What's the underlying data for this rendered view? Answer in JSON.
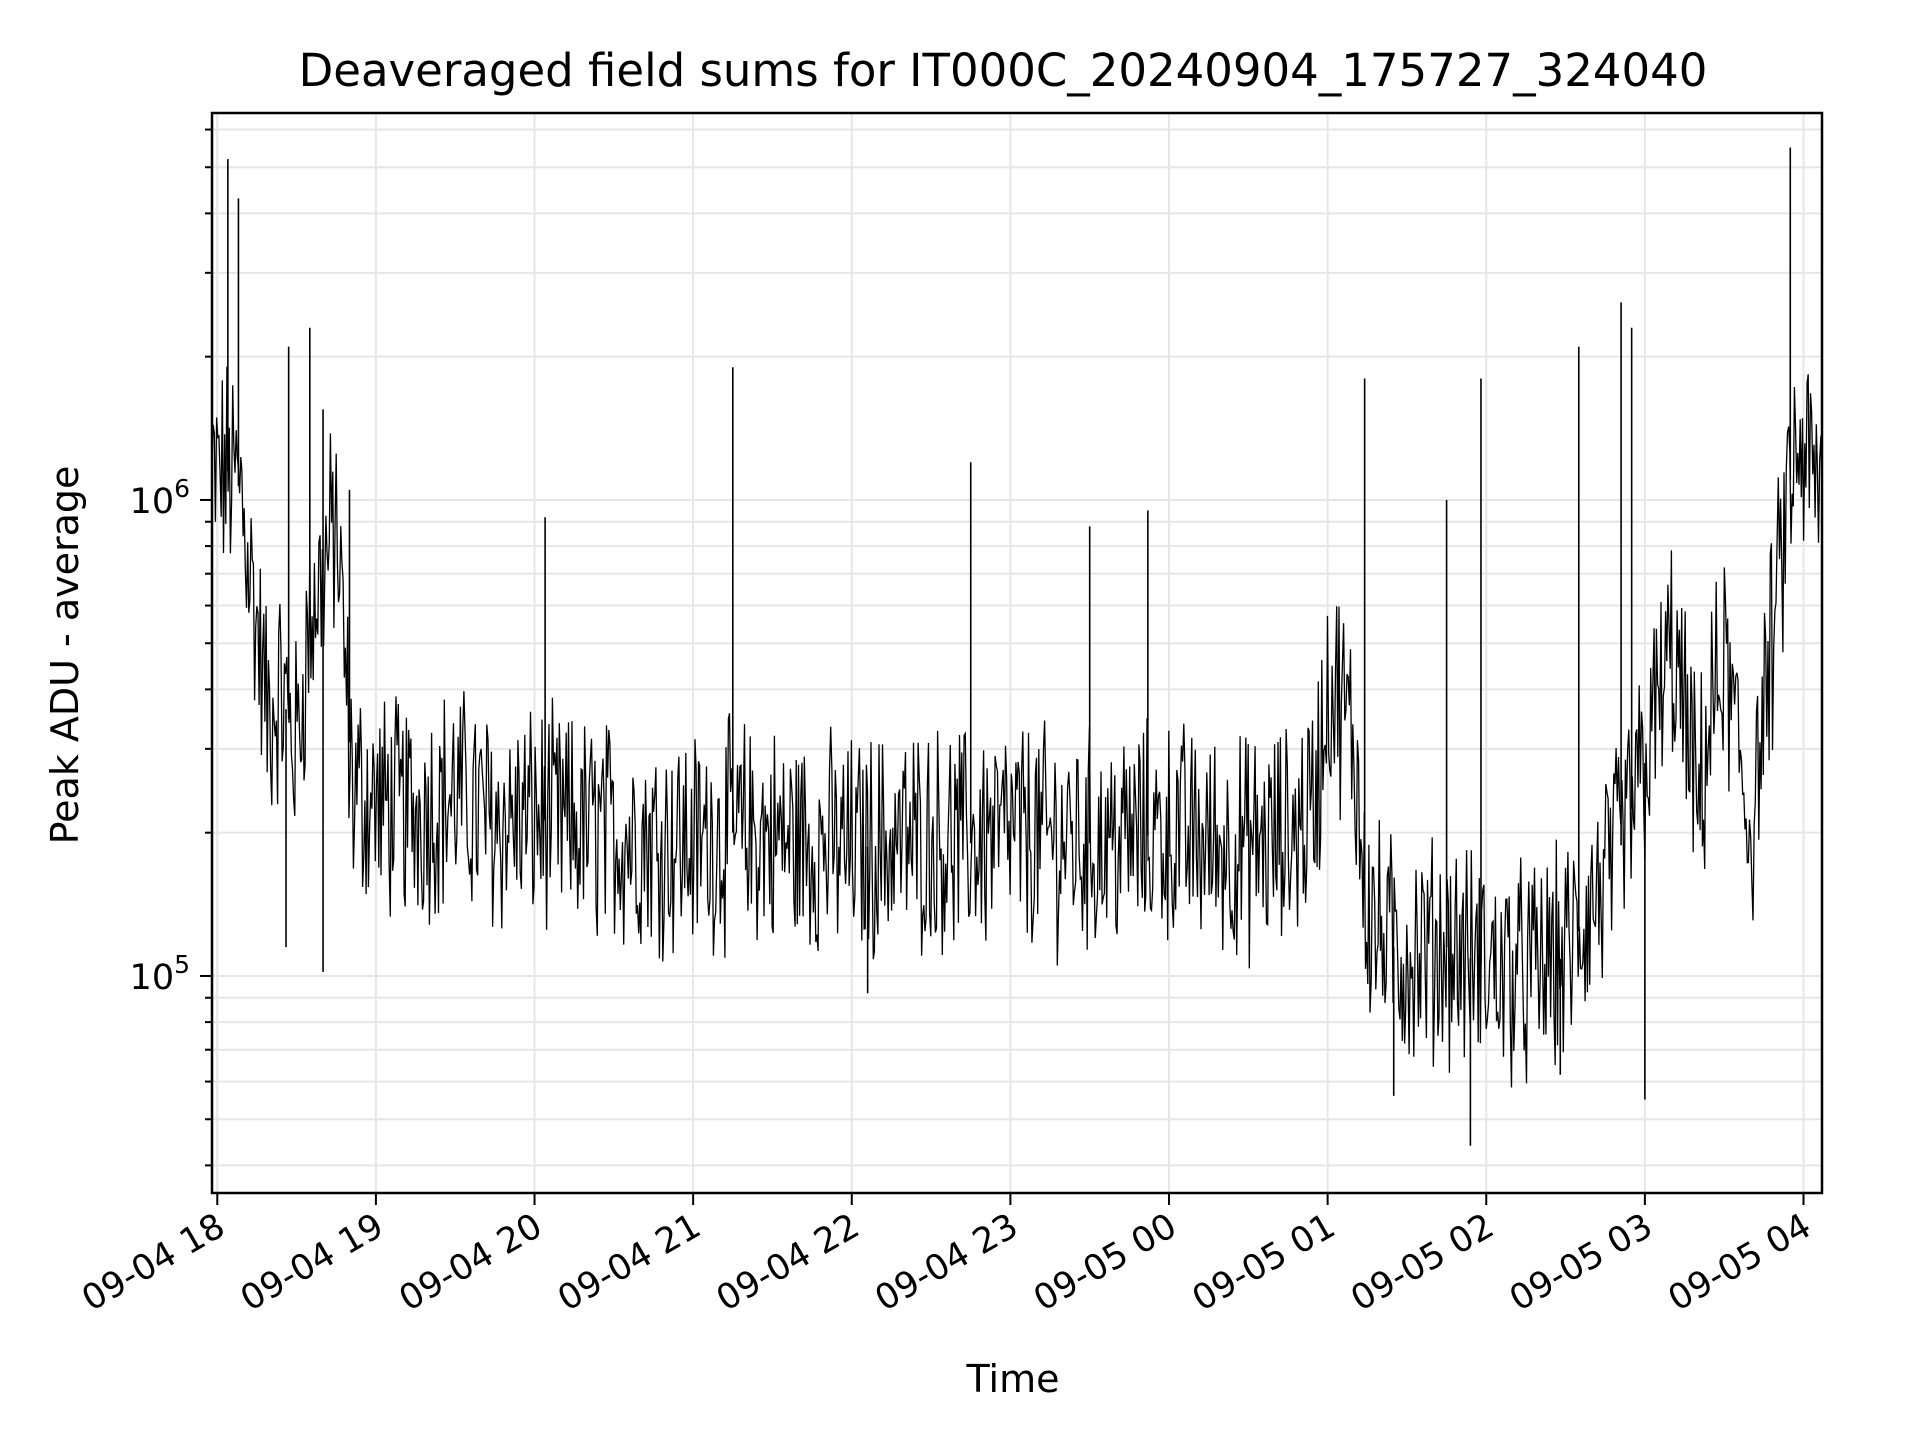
{
  "chart_data": {
    "type": "line",
    "title": "Deaveraged field sums for IT000C_20240904_175727_324040",
    "xlabel": "Time",
    "ylabel": "Peak ADU - average",
    "y_scale": "log",
    "ylim": [
      35000,
      6500000
    ],
    "x_range": [
      "2024-09-04 17:58",
      "2024-09-05 04:07"
    ],
    "x_ticks": [
      {
        "value": "2024-09-04 18:00",
        "label": "09-04 18"
      },
      {
        "value": "2024-09-04 19:00",
        "label": "09-04 19"
      },
      {
        "value": "2024-09-04 20:00",
        "label": "09-04 20"
      },
      {
        "value": "2024-09-04 21:00",
        "label": "09-04 21"
      },
      {
        "value": "2024-09-04 22:00",
        "label": "09-04 22"
      },
      {
        "value": "2024-09-04 23:00",
        "label": "09-04 23"
      },
      {
        "value": "2024-09-05 00:00",
        "label": "09-05 00"
      },
      {
        "value": "2024-09-05 01:00",
        "label": "09-05 01"
      },
      {
        "value": "2024-09-05 02:00",
        "label": "09-05 02"
      },
      {
        "value": "2024-09-05 03:00",
        "label": "09-05 03"
      },
      {
        "value": "2024-09-05 04:00",
        "label": "09-05 04"
      }
    ],
    "y_ticks": [
      {
        "value": 100000,
        "base": "10",
        "exp": "5"
      },
      {
        "value": 1000000,
        "base": "10",
        "exp": "6"
      }
    ],
    "grid": true,
    "line_color": "#000000",
    "grid_color": "#e6e6e6",
    "series": [
      {
        "x": [
          "2024-09-04 17:58",
          "2024-09-04 18:04",
          "2024-09-04 18:09",
          "2024-09-04 18:14",
          "2024-09-04 18:19",
          "2024-09-04 18:24",
          "2024-09-04 18:30",
          "2024-09-04 18:35",
          "2024-09-04 18:40",
          "2024-09-04 18:45",
          "2024-09-04 18:51",
          "2024-09-04 19:00",
          "2024-09-04 19:15",
          "2024-09-04 19:30",
          "2024-09-04 19:45",
          "2024-09-04 20:00",
          "2024-09-04 20:15",
          "2024-09-04 20:30",
          "2024-09-04 20:45",
          "2024-09-04 21:00",
          "2024-09-04 21:15",
          "2024-09-04 21:30",
          "2024-09-04 21:45",
          "2024-09-04 22:00",
          "2024-09-04 22:15",
          "2024-09-04 22:30",
          "2024-09-04 22:45",
          "2024-09-04 23:00",
          "2024-09-04 23:15",
          "2024-09-04 23:30",
          "2024-09-04 23:45",
          "2024-09-05 00:00",
          "2024-09-05 00:15",
          "2024-09-05 00:30",
          "2024-09-05 00:45",
          "2024-09-05 00:55",
          "2024-09-05 01:00",
          "2024-09-05 01:05",
          "2024-09-05 01:10",
          "2024-09-05 01:15",
          "2024-09-05 01:20",
          "2024-09-05 01:30",
          "2024-09-05 01:45",
          "2024-09-05 02:00",
          "2024-09-05 02:15",
          "2024-09-05 02:30",
          "2024-09-05 02:40",
          "2024-09-05 02:50",
          "2024-09-05 03:00",
          "2024-09-05 03:10",
          "2024-09-05 03:15",
          "2024-09-05 03:20",
          "2024-09-05 03:25",
          "2024-09-05 03:30",
          "2024-09-05 03:35",
          "2024-09-05 03:40",
          "2024-09-05 03:45",
          "2024-09-05 03:50",
          "2024-09-05 03:55",
          "2024-09-05 04:00",
          "2024-09-05 04:07"
        ],
        "y": [
          1100000,
          1150000,
          1050000,
          600000,
          350000,
          400000,
          300000,
          550000,
          700000,
          900000,
          250000,
          230000,
          220000,
          240000,
          210000,
          215000,
          205000,
          200000,
          195000,
          190000,
          200000,
          195000,
          190000,
          185000,
          190000,
          195000,
          190000,
          200000,
          195000,
          190000,
          195000,
          200000,
          190000,
          185000,
          195000,
          230000,
          400000,
          380000,
          300000,
          140000,
          120000,
          110000,
          115000,
          105000,
          100000,
          110000,
          140000,
          180000,
          280000,
          480000,
          350000,
          220000,
          350000,
          450000,
          300000,
          200000,
          350000,
          600000,
          1100000,
          1250000,
          1000000
        ]
      }
    ],
    "spikes": [
      {
        "x": "2024-09-04 18:04",
        "y": 5200000
      },
      {
        "x": "2024-09-04 18:08",
        "y": 4300000
      },
      {
        "x": "2024-09-04 18:27",
        "y": 2100000
      },
      {
        "x": "2024-09-04 18:35",
        "y": 2300000
      },
      {
        "x": "2024-09-04 18:40",
        "y": 1550000
      },
      {
        "x": "2024-09-04 18:50",
        "y": 1050000
      },
      {
        "x": "2024-09-04 20:04",
        "y": 920000
      },
      {
        "x": "2024-09-04 21:15",
        "y": 1900000
      },
      {
        "x": "2024-09-04 22:45",
        "y": 1200000
      },
      {
        "x": "2024-09-04 23:30",
        "y": 880000
      },
      {
        "x": "2024-09-04 23:52",
        "y": 950000
      },
      {
        "x": "2024-09-05 01:14",
        "y": 1800000
      },
      {
        "x": "2024-09-05 01:45",
        "y": 1000000
      },
      {
        "x": "2024-09-05 01:58",
        "y": 1800000
      },
      {
        "x": "2024-09-05 02:35",
        "y": 2100000
      },
      {
        "x": "2024-09-05 02:51",
        "y": 2600000
      },
      {
        "x": "2024-09-05 02:55",
        "y": 2300000
      },
      {
        "x": "2024-09-05 03:55",
        "y": 5500000
      }
    ],
    "dips": [
      {
        "x": "2024-09-04 18:26",
        "y": 115000
      },
      {
        "x": "2024-09-04 18:40",
        "y": 102000
      },
      {
        "x": "2024-09-04 22:06",
        "y": 92000
      },
      {
        "x": "2024-09-05 01:25",
        "y": 56000
      },
      {
        "x": "2024-09-05 01:54",
        "y": 44000
      },
      {
        "x": "2024-09-05 02:28",
        "y": 62000
      },
      {
        "x": "2024-09-05 03:00",
        "y": 55000
      }
    ]
  }
}
